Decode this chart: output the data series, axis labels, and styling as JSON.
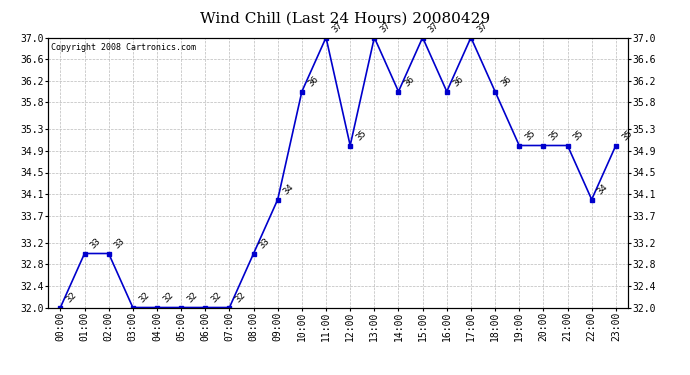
{
  "title": "Wind Chill (Last 24 Hours) 20080429",
  "copyright": "Copyright 2008 Cartronics.com",
  "hours": [
    "00:00",
    "01:00",
    "02:00",
    "03:00",
    "04:00",
    "05:00",
    "06:00",
    "07:00",
    "08:00",
    "09:00",
    "10:00",
    "11:00",
    "12:00",
    "13:00",
    "14:00",
    "15:00",
    "16:00",
    "17:00",
    "18:00",
    "19:00",
    "20:00",
    "21:00",
    "22:00",
    "23:00"
  ],
  "values": [
    32,
    33,
    33,
    32,
    32,
    32,
    32,
    32,
    33,
    34,
    36,
    37,
    35,
    37,
    36,
    37,
    36,
    37,
    36,
    35,
    35,
    35,
    34,
    35
  ],
  "line_color": "#0000cc",
  "marker": "s",
  "markersize": 2.5,
  "linewidth": 1.2,
  "ylim": [
    32.0,
    37.0
  ],
  "yticks": [
    32.0,
    32.4,
    32.8,
    33.2,
    33.7,
    34.1,
    34.5,
    34.9,
    35.3,
    35.8,
    36.2,
    36.6,
    37.0
  ],
  "grid_color": "#bbbbbb",
  "grid_linestyle": "--",
  "bg_color": "#ffffff",
  "title_fontsize": 11,
  "tick_fontsize": 7,
  "annotation_fontsize": 6.5,
  "copyright_fontsize": 6
}
